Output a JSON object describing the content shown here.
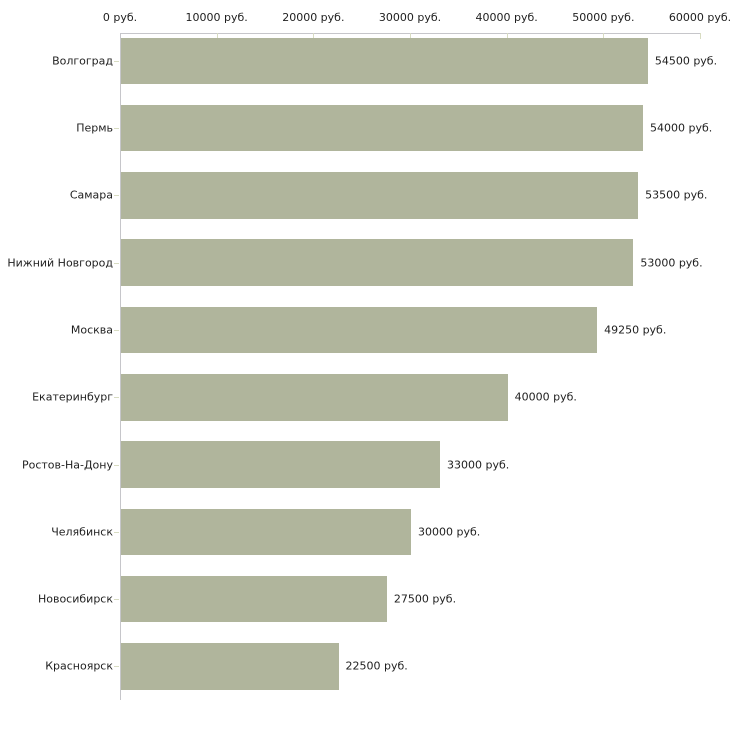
{
  "chart_data": {
    "type": "bar",
    "orientation": "horizontal",
    "title": "",
    "unit": "руб.",
    "categories": [
      "Волгоград",
      "Пермь",
      "Самара",
      "Нижний Новгород",
      "Москва",
      "Екатеринбург",
      "Ростов-На-Дону",
      "Челябинск",
      "Новосибирск",
      "Красноярск"
    ],
    "values": [
      54500,
      54000,
      53500,
      53000,
      49250,
      40000,
      33000,
      30000,
      27500,
      22500
    ],
    "value_labels": [
      "54500 руб.",
      "54000 руб.",
      "53500 руб.",
      "53000 руб.",
      "49250 руб.",
      "40000 руб.",
      "33000 руб.",
      "30000 руб.",
      "27500 руб.",
      "22500 руб."
    ],
    "x_axis": {
      "position": "top",
      "min": 0,
      "max": 60000,
      "tick_step": 10000,
      "tick_values": [
        0,
        10000,
        20000,
        30000,
        40000,
        50000,
        60000
      ],
      "tick_labels": [
        "0 руб.",
        "10000 руб.",
        "20000 руб.",
        "30000 руб.",
        "40000 руб.",
        "50000 руб.",
        "60000 руб."
      ]
    },
    "grid": false,
    "legend": false,
    "colors": {
      "bar": "#b0b59c",
      "axis_line": "#c6c6ca",
      "tick_mark": "#d8dcc2",
      "text": "#1f1f1f",
      "background": "#ffffff"
    }
  }
}
